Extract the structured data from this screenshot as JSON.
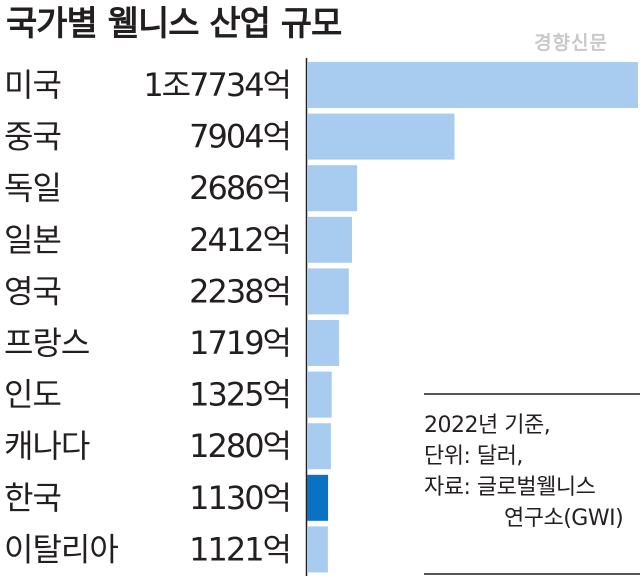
{
  "chart_data": {
    "type": "bar",
    "orientation": "horizontal",
    "title": "국가별 웰니스 산업 규모",
    "categories": [
      "미국",
      "중국",
      "독일",
      "일본",
      "영국",
      "프랑스",
      "인도",
      "캐나다",
      "한국",
      "이탈리아"
    ],
    "values": [
      17734,
      7904,
      2686,
      2412,
      2238,
      1719,
      1325,
      1280,
      1130,
      1121
    ],
    "value_labels": [
      "1조7734억",
      "7904억",
      "2686억",
      "2412억",
      "2238억",
      "1719억",
      "1325억",
      "1280억",
      "1130억",
      "1121억"
    ],
    "highlight": "한국",
    "colors": {
      "bar": "#a8ccef",
      "highlight": "#0a72c2"
    },
    "grid": false,
    "legend": "none"
  },
  "watermark": "경향신문",
  "note": {
    "line1": "2022년 기준,",
    "line2": "단위: 달러,",
    "line3": "자료: 글로벌웰니스",
    "line4": "연구소(GWI)"
  }
}
